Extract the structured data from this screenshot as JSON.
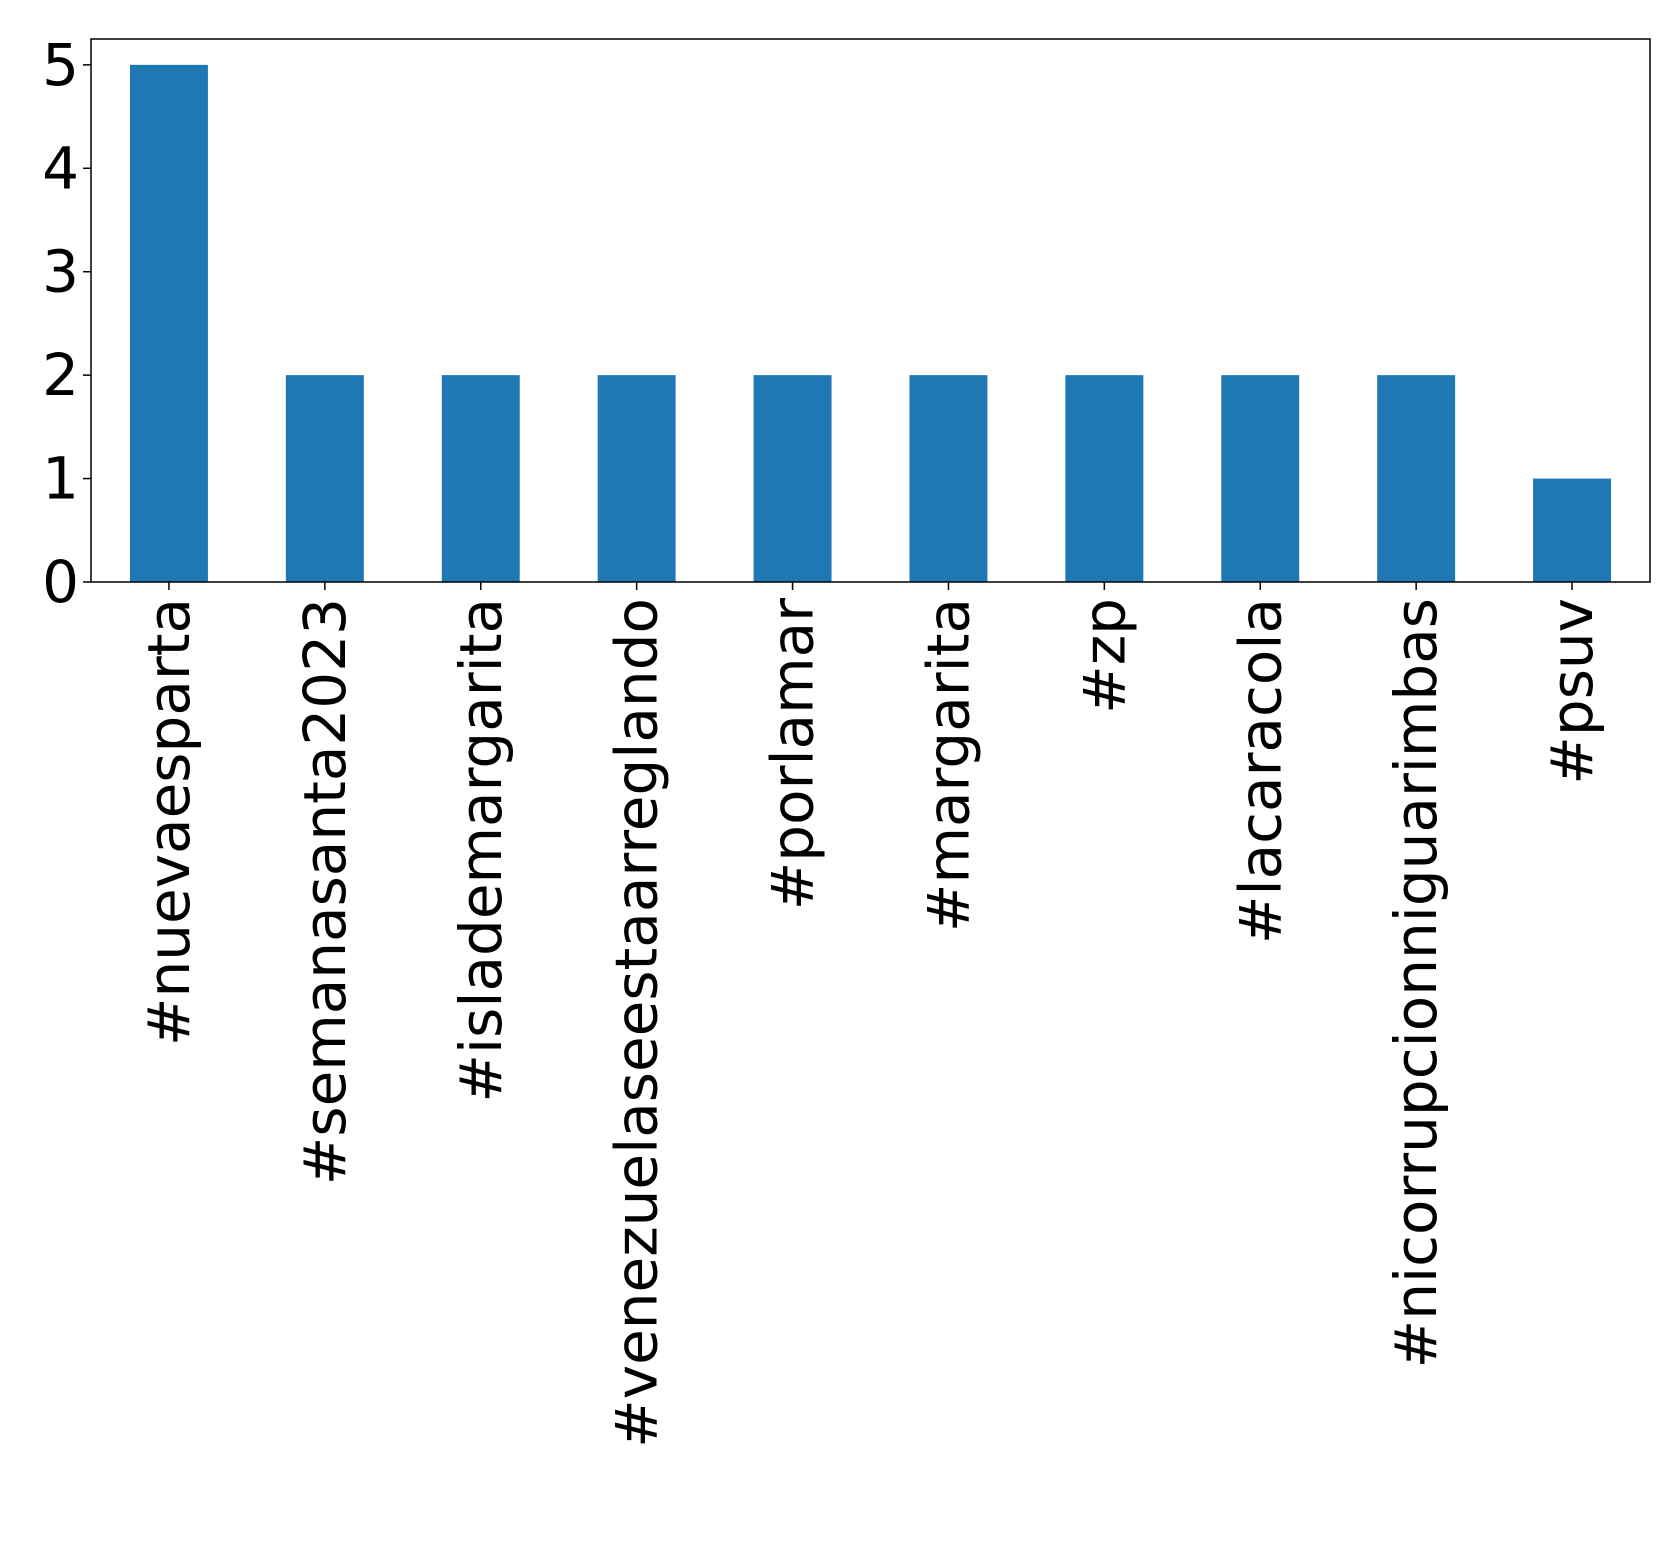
{
  "chart_data": {
    "type": "bar",
    "categories": [
      "#nuevaesparta",
      "#semanasanta2023",
      "#islademargarita",
      "#venezuelaseestaarreglando",
      "#porlamar",
      "#margarita",
      "#zp",
      "#lacaracola",
      "#nicorrupcionniguarimbas",
      "#psuv"
    ],
    "values": [
      5,
      2,
      2,
      2,
      2,
      2,
      2,
      2,
      2,
      1
    ],
    "title": "",
    "xlabel": "",
    "ylabel": "",
    "ylim": [
      0,
      5.25
    ],
    "yticks": [
      0,
      1,
      2,
      3,
      4,
      5
    ],
    "grid": false,
    "bar_color": "#1f77b4"
  }
}
